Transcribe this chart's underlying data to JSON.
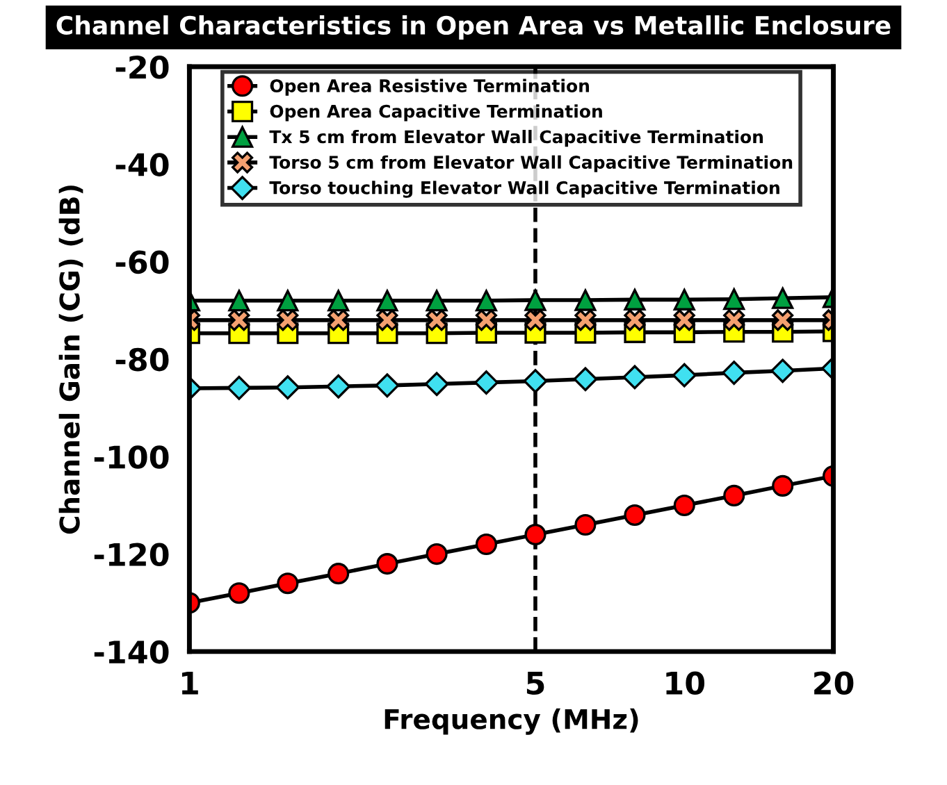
{
  "chart_data": {
    "type": "line",
    "title": "Channel Characteristics in Open Area vs Metallic Enclosure",
    "xlabel": "Frequency (MHz)",
    "ylabel": "Channel Gain (CG) (dB)",
    "x": [
      1,
      1.26,
      1.58,
      2,
      2.51,
      3.16,
      3.98,
      5,
      6.31,
      7.94,
      10,
      12.6,
      15.8,
      20
    ],
    "series": [
      {
        "name": "Open Area Resistive Termination",
        "color": "#ff0000",
        "marker": "circle",
        "values": [
          -130,
          -128,
          -126,
          -124,
          -122,
          -120,
          -118,
          -116,
          -114,
          -112,
          -110,
          -108,
          -106,
          -104
        ]
      },
      {
        "name": "Open Area Capacitive Termination",
        "color": "#ffff00",
        "marker": "square",
        "values": [
          -74.7,
          -74.7,
          -74.7,
          -74.7,
          -74.7,
          -74.7,
          -74.6,
          -74.6,
          -74.6,
          -74.5,
          -74.5,
          -74.4,
          -74.4,
          -74.3
        ]
      },
      {
        "name": "Tx 5 cm from Elevator Wall Capacitive Termination",
        "color": "#00a040",
        "marker": "triangle",
        "values": [
          -68,
          -68,
          -68,
          -68,
          -68,
          -68,
          -68,
          -67.9,
          -67.9,
          -67.8,
          -67.8,
          -67.7,
          -67.5,
          -67.3
        ]
      },
      {
        "name": "Torso 5 cm from Elevator Wall Capacitive Termination",
        "color": "#f4a070",
        "marker": "cross",
        "values": [
          -72,
          -72,
          -72,
          -72,
          -72,
          -72,
          -72,
          -72,
          -72,
          -72,
          -72,
          -72,
          -72,
          -72
        ]
      },
      {
        "name": "Torso touching Elevator Wall Capacitive Termination",
        "color": "#40e0f0",
        "marker": "diamond",
        "values": [
          -86,
          -85.9,
          -85.8,
          -85.6,
          -85.4,
          -85.1,
          -84.8,
          -84.5,
          -84.1,
          -83.7,
          -83.3,
          -82.8,
          -82.4,
          -81.9
        ]
      }
    ],
    "log": "x",
    "xlim": [
      1,
      20
    ],
    "xticks": [
      1,
      5,
      10,
      20
    ],
    "ylim": [
      -140,
      -20
    ],
    "yticks": [
      -140,
      -120,
      -100,
      -80,
      -60,
      -40,
      -20
    ],
    "ref_lines": [
      {
        "axis": "x",
        "value": 5,
        "line_style": "dashed",
        "color": "#000000"
      }
    ],
    "grid": false,
    "legend": "top"
  }
}
